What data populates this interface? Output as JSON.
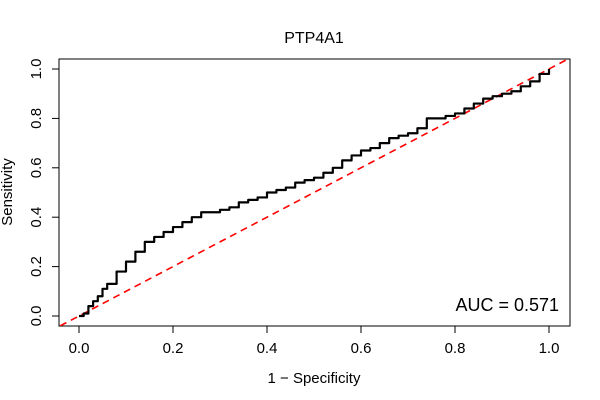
{
  "chart_data": {
    "type": "line",
    "title": "PTP4A1",
    "xlabel": "1 − Specificity",
    "ylabel": "Sensitivity",
    "xlim": [
      0,
      1
    ],
    "ylim": [
      0,
      1
    ],
    "x_ticks": [
      "0.0",
      "0.2",
      "0.4",
      "0.6",
      "0.8",
      "1.0"
    ],
    "y_ticks": [
      "0.0",
      "0.2",
      "0.4",
      "0.6",
      "0.8",
      "1.0"
    ],
    "grid": false,
    "annotation": "AUC = 0.571",
    "colors": {
      "roc": "#000000",
      "reference": "#ff0000"
    },
    "series": [
      {
        "style": "solid",
        "x": [
          0.0,
          0.01,
          0.02,
          0.03,
          0.04,
          0.05,
          0.06,
          0.08,
          0.1,
          0.12,
          0.14,
          0.16,
          0.18,
          0.2,
          0.22,
          0.24,
          0.26,
          0.28,
          0.3,
          0.32,
          0.34,
          0.36,
          0.38,
          0.4,
          0.42,
          0.44,
          0.46,
          0.48,
          0.5,
          0.52,
          0.54,
          0.56,
          0.58,
          0.6,
          0.62,
          0.64,
          0.66,
          0.68,
          0.7,
          0.72,
          0.74,
          0.76,
          0.78,
          0.8,
          0.82,
          0.84,
          0.86,
          0.88,
          0.9,
          0.92,
          0.94,
          0.96,
          0.98,
          1.0
        ],
        "y": [
          0.0,
          0.01,
          0.04,
          0.06,
          0.08,
          0.11,
          0.13,
          0.18,
          0.22,
          0.26,
          0.3,
          0.32,
          0.34,
          0.36,
          0.38,
          0.4,
          0.42,
          0.42,
          0.43,
          0.44,
          0.46,
          0.47,
          0.48,
          0.5,
          0.51,
          0.52,
          0.54,
          0.55,
          0.56,
          0.58,
          0.6,
          0.63,
          0.65,
          0.67,
          0.68,
          0.7,
          0.72,
          0.73,
          0.74,
          0.76,
          0.8,
          0.8,
          0.81,
          0.82,
          0.84,
          0.86,
          0.88,
          0.89,
          0.9,
          0.91,
          0.93,
          0.95,
          0.98,
          1.0
        ]
      },
      {
        "style": "dashed",
        "x": [
          -0.04,
          1.04
        ],
        "y": [
          -0.04,
          1.04
        ]
      }
    ]
  }
}
